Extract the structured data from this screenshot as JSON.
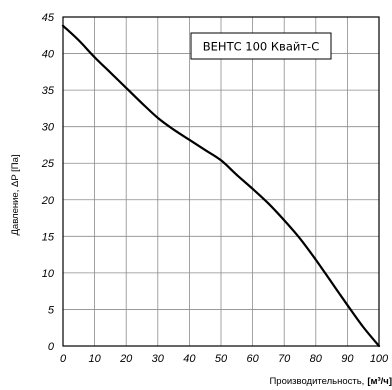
{
  "chart_data": {
    "type": "line",
    "title": "",
    "xlabel": "Производительность,",
    "xlabel_unit": "[м³/ч]",
    "ylabel": "Давление, ΔP [Па]",
    "xlim": [
      0,
      100
    ],
    "ylim": [
      0,
      45
    ],
    "x_ticks": [
      "0",
      "10",
      "20",
      "30",
      "40",
      "50",
      "60",
      "70",
      "80",
      "90",
      "100"
    ],
    "y_ticks": [
      "0",
      "5",
      "10",
      "15",
      "20",
      "25",
      "30",
      "35",
      "40",
      "45"
    ],
    "grid": true,
    "legend_position": "top-right",
    "series": [
      {
        "name": "ВЕНТС 100 Квайт-С",
        "color": "#000000",
        "x": [
          0,
          5,
          10,
          15,
          20,
          25,
          30,
          35,
          40,
          45,
          50,
          55,
          60,
          65,
          70,
          75,
          80,
          85,
          90,
          95,
          100
        ],
        "y": [
          43.8,
          41.8,
          39.5,
          37.4,
          35.3,
          33.2,
          31.2,
          29.6,
          28.2,
          26.8,
          25.4,
          23.4,
          21.5,
          19.5,
          17.2,
          14.7,
          11.8,
          8.7,
          5.6,
          2.6,
          0
        ]
      }
    ]
  }
}
